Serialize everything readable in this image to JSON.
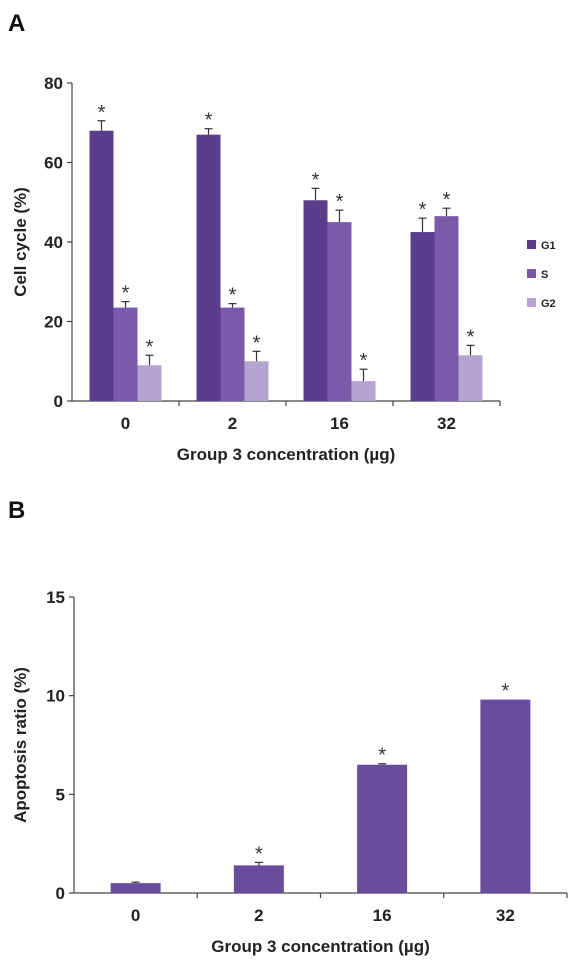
{
  "panels": {
    "a": {
      "letter": "A"
    },
    "b": {
      "letter": "B"
    }
  },
  "chart_data": [
    {
      "type": "bar",
      "xlabel": "Group 3 concentration (µg)",
      "ylabel": "Cell cycle (%)",
      "ylim": [
        0,
        80
      ],
      "yticks": [
        0,
        20,
        40,
        60,
        80
      ],
      "categories": [
        "0",
        "2",
        "16",
        "32"
      ],
      "legend_position": "right",
      "series": [
        {
          "name": "G1",
          "color": "#5a3e8c",
          "values": [
            68,
            67,
            50.5,
            42.5
          ],
          "errors": [
            2.5,
            1.5,
            3,
            3.5
          ],
          "significance": [
            "*",
            "*",
            "*",
            "*"
          ]
        },
        {
          "name": "S",
          "color": "#7b5aaa",
          "values": [
            23.5,
            23.5,
            45,
            46.5
          ],
          "errors": [
            1.5,
            1,
            3,
            2
          ],
          "significance": [
            "*",
            "*",
            "*",
            "*"
          ]
        },
        {
          "name": "G2",
          "color": "#b3a5cf",
          "values": [
            9,
            10,
            5,
            11.5
          ],
          "errors": [
            2.5,
            2.5,
            3,
            2.5
          ],
          "significance": [
            "*",
            "*",
            "*",
            "*"
          ]
        }
      ]
    },
    {
      "type": "bar",
      "xlabel": "Group 3 concentration (µg)",
      "ylabel": "Apoptosis ratio (%)",
      "ylim": [
        0,
        15
      ],
      "yticks": [
        0,
        5,
        10,
        15
      ],
      "categories": [
        "0",
        "2",
        "16",
        "32"
      ],
      "series": [
        {
          "color": "#6a4c9c",
          "values": [
            0.5,
            1.4,
            6.5,
            9.8
          ],
          "errors": [
            0.05,
            0.15,
            0.05,
            0
          ],
          "significance": [
            "",
            "*",
            "*",
            "*"
          ]
        }
      ]
    }
  ]
}
